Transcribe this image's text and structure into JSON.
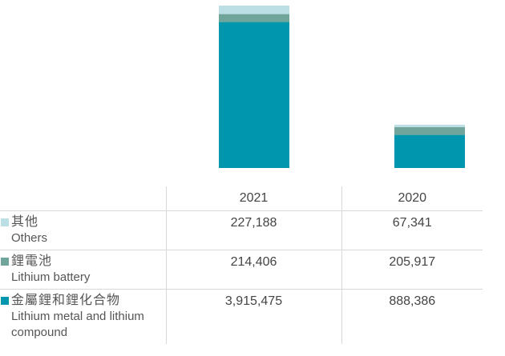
{
  "chart_data": {
    "type": "bar",
    "stacked": true,
    "categories": [
      "2021",
      "2020"
    ],
    "series": [
      {
        "name": "金屬鋰和鋰化合物 Lithium metal and lithium compound",
        "color": "#0096ae",
        "values": [
          3915475,
          888386
        ]
      },
      {
        "name": "鋰電池 Lithium battery",
        "color": "#6fa59a",
        "values": [
          214406,
          205917
        ]
      },
      {
        "name": "其他 Others",
        "color": "#bcdfe5",
        "values": [
          227188,
          67341
        ]
      }
    ],
    "axes_visible": false,
    "grid": false
  },
  "table": {
    "columns": [
      "2021",
      "2020"
    ],
    "rows": [
      {
        "label_zh": "其他",
        "label_en": "Others",
        "color": "#bcdfe5",
        "values": [
          "227,188",
          "67,341"
        ]
      },
      {
        "label_zh": "鋰電池",
        "label_en": "Lithium battery",
        "color": "#6fa59a",
        "values": [
          "214,406",
          "205,917"
        ]
      },
      {
        "label_zh": "金屬鋰和鋰化合物",
        "label_en": "Lithium metal and lithium compound",
        "color": "#0096ae",
        "values": [
          "3,915,475",
          "888,386"
        ]
      }
    ]
  }
}
